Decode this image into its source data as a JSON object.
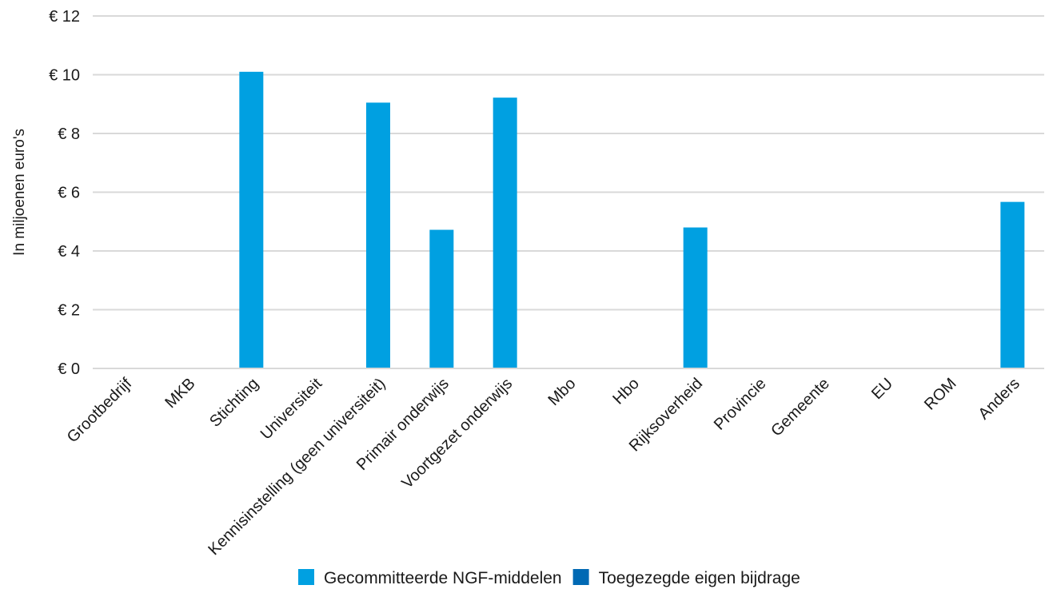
{
  "chart_data": {
    "type": "bar",
    "title": "",
    "xlabel": "",
    "ylabel": "In miljoenen euro's",
    "ylim": [
      0,
      12
    ],
    "yticks": [
      0,
      2,
      4,
      6,
      8,
      10,
      12
    ],
    "ytick_labels": [
      "€ 0",
      "€ 2",
      "€ 4",
      "€ 6",
      "€ 8",
      "€ 10",
      "€ 12"
    ],
    "grid": true,
    "legend_position": "bottom",
    "categories": [
      "Grootbedrijf",
      "MKB",
      "Stichting",
      "Universiteit",
      "Kennisinstelling (geen universiteit)",
      "Primair onderwijs",
      "Voortgezet onderwijs",
      "Mbo",
      "Hbo",
      "Rijksoverheid",
      "Provincie",
      "Gemeente",
      "EU",
      "ROM",
      "Anders"
    ],
    "series": [
      {
        "name": "Gecommitteerde NGF-middelen",
        "color": "#00a0e1",
        "values": [
          0,
          0,
          10.1,
          0,
          9.05,
          4.72,
          9.22,
          0,
          0,
          4.8,
          0,
          0,
          0,
          0,
          5.67
        ]
      },
      {
        "name": "Toegezegde eigen bijdrage",
        "color": "#0069b4",
        "values": [
          0,
          0,
          0,
          0,
          0,
          0,
          0,
          0,
          0,
          0,
          0,
          0,
          0,
          0,
          0
        ]
      }
    ]
  }
}
